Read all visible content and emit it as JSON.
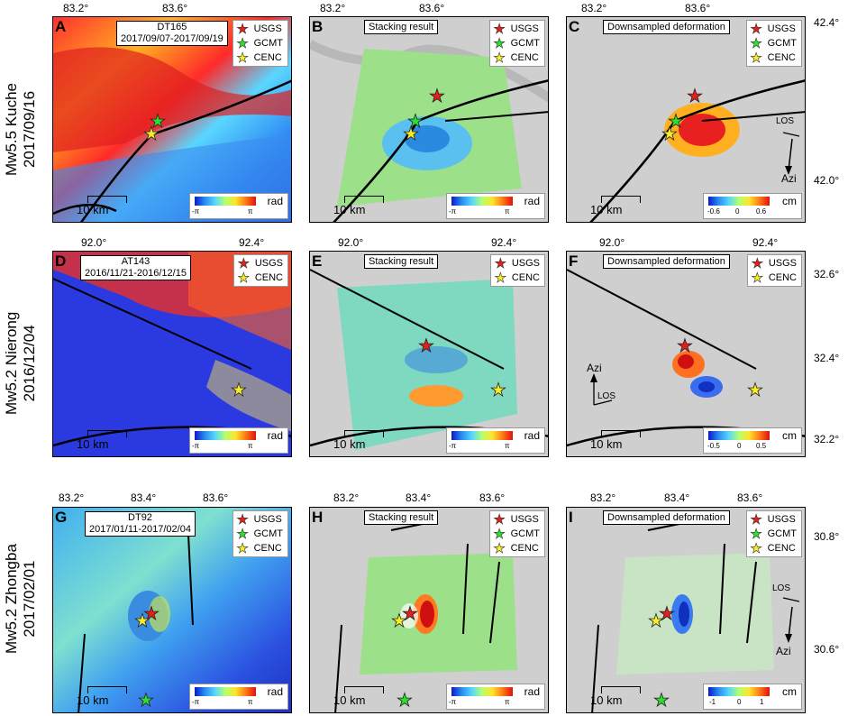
{
  "rows": [
    {
      "label_line1": "Mw5.5 Kuche",
      "label_line2": "2017/09/16",
      "top_ticks": [
        "83.2°",
        "83.6°"
      ],
      "right_ticks": [
        "42.4°",
        "42.0°"
      ],
      "panels": [
        {
          "letter": "A",
          "track": "DT165",
          "dates": "2017/09/07-2017/09/19",
          "cbar_unit": "rad",
          "cbar_min": "-π",
          "cbar_max": "π"
        },
        {
          "letter": "B",
          "box": "Stacking result",
          "cbar_unit": "rad",
          "cbar_min": "-π",
          "cbar_max": "π"
        },
        {
          "letter": "C",
          "box": "Downsampled deformation",
          "cbar_unit": "cm",
          "cbar_ticks": [
            "-0.6",
            "0",
            "0.6"
          ],
          "los": "LOS",
          "azi": "Azi"
        }
      ],
      "legend": [
        "USGS",
        "GCMT",
        "CENC"
      ]
    },
    {
      "label_line1": "Mw5.2 Nierong",
      "label_line2": "2016/12/04",
      "top_ticks": [
        "92.0°",
        "92.4°"
      ],
      "right_ticks": [
        "32.6°",
        "32.4°",
        "32.2°"
      ],
      "panels": [
        {
          "letter": "D",
          "track": "AT143",
          "dates": "2016/11/21-2016/12/15",
          "cbar_unit": "rad",
          "cbar_min": "-π",
          "cbar_max": "π"
        },
        {
          "letter": "E",
          "box": "Stacking result",
          "cbar_unit": "rad",
          "cbar_min": "-π",
          "cbar_max": "π"
        },
        {
          "letter": "F",
          "box": "Downsampled deformation",
          "cbar_unit": "cm",
          "cbar_ticks": [
            "-0.5",
            "0",
            "0.5"
          ],
          "los": "LOS",
          "azi": "Azi"
        }
      ],
      "legend": [
        "USGS",
        "CENC"
      ]
    },
    {
      "label_line1": "Mw5.2 Zhongba",
      "label_line2": "2017/02/01",
      "top_ticks": [
        "83.2°",
        "83.4°",
        "83.6°"
      ],
      "right_ticks": [
        "30.8°",
        "30.6°"
      ],
      "panels": [
        {
          "letter": "G",
          "track": "DT92",
          "dates": "2017/01/11-2017/02/04",
          "cbar_unit": "rad",
          "cbar_min": "-π",
          "cbar_max": "π"
        },
        {
          "letter": "H",
          "box": "Stacking result",
          "cbar_unit": "rad",
          "cbar_min": "-π",
          "cbar_max": "π"
        },
        {
          "letter": "I",
          "box": "Downsampled deformation",
          "cbar_unit": "cm",
          "cbar_ticks": [
            "-1",
            "0",
            "1"
          ],
          "los": "LOS",
          "azi": "Azi"
        }
      ],
      "legend": [
        "USGS",
        "GCMT",
        "CENC"
      ]
    }
  ],
  "scalebar": "10 km",
  "colors": {
    "usgs": "#e3201c",
    "gcmt": "#2ee02e",
    "cenc": "#f5ee29"
  }
}
